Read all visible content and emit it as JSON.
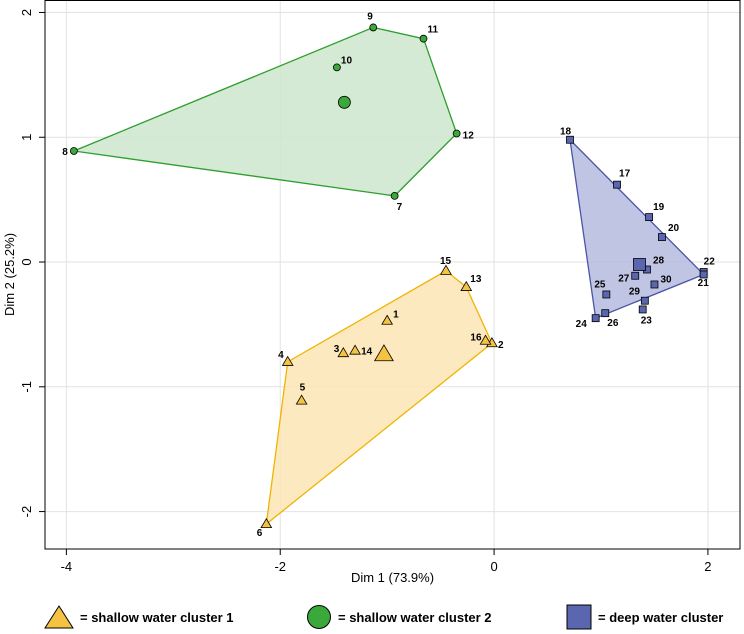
{
  "chart_data": {
    "type": "scatter",
    "title": "",
    "xlabel": "Dim 1 (73.9%)",
    "ylabel": "Dim 2 (25.2%)",
    "xlim": [
      -4.2,
      2.3
    ],
    "ylim": [
      -2.3,
      2.1
    ],
    "xticks": [
      -4,
      -2,
      0,
      2
    ],
    "yticks": [
      2,
      1,
      0,
      -1,
      -2
    ],
    "xtick_labels": [
      "-4",
      "-2",
      "0",
      "2"
    ],
    "ytick_labels": [
      "2",
      "1",
      "0",
      "-1",
      "-2"
    ],
    "grid": true,
    "legend_position": "bottom",
    "series": [
      {
        "name": "= shallow water cluster 1",
        "marker": "triangle",
        "fill": "#f5c342",
        "hull_fill": "#fbe5b5",
        "stroke": "#f0b400",
        "centroid": {
          "x": -1.03,
          "y": -0.74
        },
        "hull": [
          15,
          13,
          2,
          6,
          4
        ],
        "points": [
          {
            "id": "1",
            "x": -1.0,
            "y": -0.47
          },
          {
            "id": "2",
            "x": -0.02,
            "y": -0.65
          },
          {
            "id": "3",
            "x": -1.41,
            "y": -0.73
          },
          {
            "id": "4",
            "x": -1.93,
            "y": -0.8
          },
          {
            "id": "5",
            "x": -1.8,
            "y": -1.11
          },
          {
            "id": "6",
            "x": -2.13,
            "y": -2.1
          },
          {
            "id": "13",
            "x": -0.26,
            "y": -0.2
          },
          {
            "id": "14",
            "x": -1.3,
            "y": -0.71
          },
          {
            "id": "15",
            "x": -0.45,
            "y": -0.07
          },
          {
            "id": "16",
            "x": -0.08,
            "y": -0.63
          }
        ]
      },
      {
        "name": "= shallow water cluster 2",
        "marker": "circle",
        "fill": "#3aa83a",
        "hull_fill": "#cde6cd",
        "stroke": "#2e9e2e",
        "centroid": {
          "x": -1.4,
          "y": 1.28
        },
        "hull": [
          9,
          11,
          12,
          7,
          8
        ],
        "points": [
          {
            "id": "7",
            "x": -0.93,
            "y": 0.53
          },
          {
            "id": "8",
            "x": -3.93,
            "y": 0.89
          },
          {
            "id": "9",
            "x": -1.13,
            "y": 1.88
          },
          {
            "id": "10",
            "x": -1.47,
            "y": 1.56
          },
          {
            "id": "11",
            "x": -0.66,
            "y": 1.79
          },
          {
            "id": "12",
            "x": -0.35,
            "y": 1.03
          }
        ]
      },
      {
        "name": "= deep water cluster",
        "marker": "square",
        "fill": "#5a66b0",
        "hull_fill": "#b6bbdf",
        "stroke": "#4a55a6",
        "centroid": {
          "x": 1.36,
          "y": -0.02
        },
        "hull": [
          18,
          22,
          24
        ],
        "points": [
          {
            "id": "17",
            "x": 1.15,
            "y": 0.62
          },
          {
            "id": "18",
            "x": 0.71,
            "y": 0.98
          },
          {
            "id": "19",
            "x": 1.45,
            "y": 0.36
          },
          {
            "id": "20",
            "x": 1.57,
            "y": 0.2
          },
          {
            "id": "21",
            "x": 1.96,
            "y": -0.08
          },
          {
            "id": "22",
            "x": 1.96,
            "y": -0.1
          },
          {
            "id": "23",
            "x": 1.39,
            "y": -0.38
          },
          {
            "id": "24",
            "x": 0.95,
            "y": -0.45
          },
          {
            "id": "25",
            "x": 1.05,
            "y": -0.26
          },
          {
            "id": "26",
            "x": 1.04,
            "y": -0.41
          },
          {
            "id": "27",
            "x": 1.32,
            "y": -0.11
          },
          {
            "id": "28",
            "x": 1.43,
            "y": -0.06
          },
          {
            "id": "29",
            "x": 1.41,
            "y": -0.31
          },
          {
            "id": "30",
            "x": 1.5,
            "y": -0.18
          }
        ]
      }
    ]
  }
}
